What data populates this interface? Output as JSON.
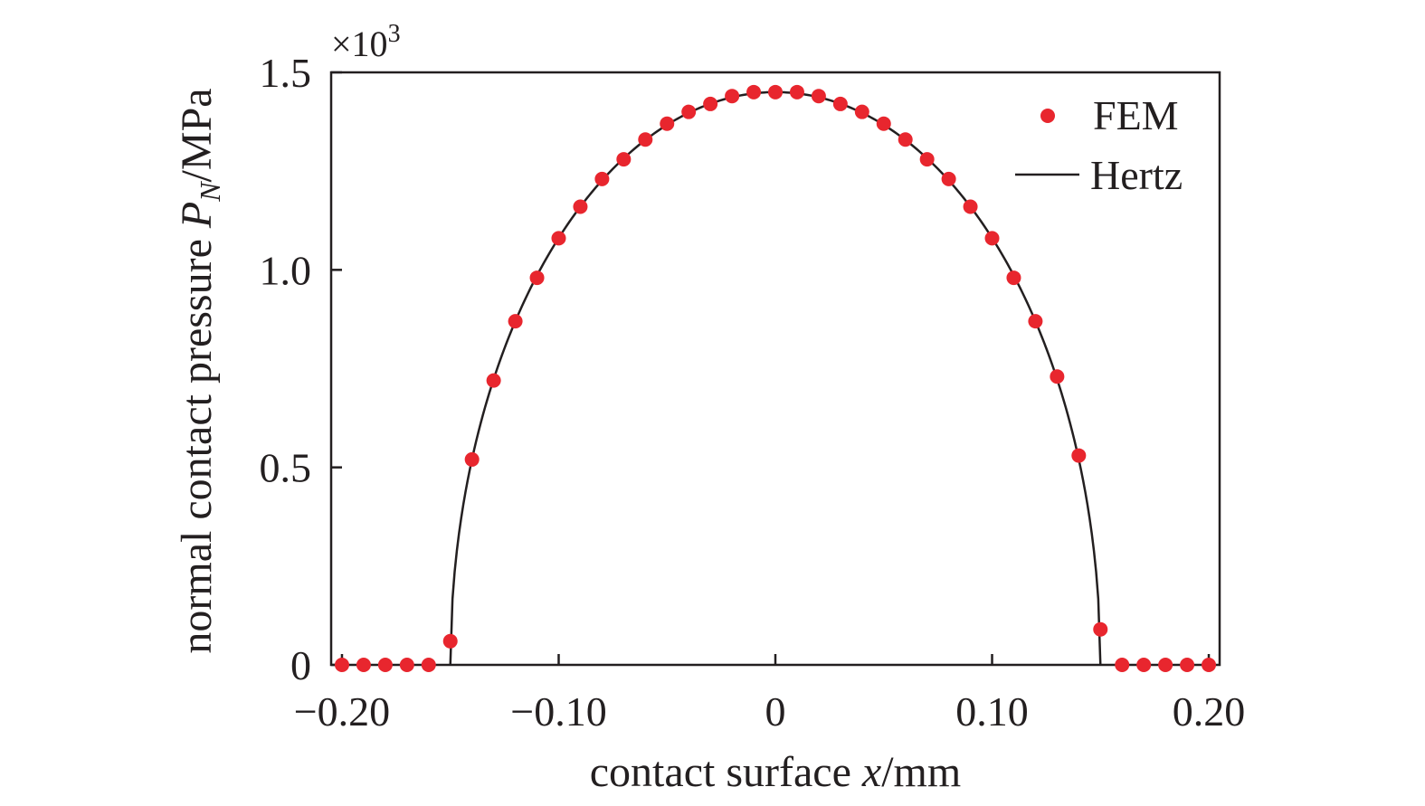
{
  "chart_data": {
    "type": "scatter",
    "title": "",
    "xlabel": {
      "pre": "contact surface ",
      "var": "x",
      "post": "/mm"
    },
    "ylabel": {
      "pre": "normal contact pressure ",
      "var": "P",
      "sub": "N",
      "post": "/MPa"
    },
    "y_multiplier": {
      "base": "×10",
      "exp": "3"
    },
    "xlim": [
      -0.205,
      0.205
    ],
    "ylim": [
      0,
      1.5
    ],
    "xticks": [
      {
        "v": -0.2,
        "label": "−0.20"
      },
      {
        "v": -0.1,
        "label": "−0.10"
      },
      {
        "v": 0,
        "label": "0"
      },
      {
        "v": 0.1,
        "label": "0.10"
      },
      {
        "v": 0.2,
        "label": "0.20"
      }
    ],
    "yticks": [
      {
        "v": 0,
        "label": "0"
      },
      {
        "v": 0.5,
        "label": "0.5"
      },
      {
        "v": 1.0,
        "label": "1.0"
      },
      {
        "v": 1.5,
        "label": "1.5"
      }
    ],
    "legend_position": "top-right",
    "grid": false,
    "series": [
      {
        "name": "FEM",
        "kind": "markers",
        "color": "#e8262e",
        "x": [
          -0.2,
          -0.19,
          -0.18,
          -0.17,
          -0.16,
          -0.15,
          -0.14,
          -0.13,
          -0.12,
          -0.11,
          -0.1,
          -0.09,
          -0.08,
          -0.07,
          -0.06,
          -0.05,
          -0.04,
          -0.03,
          -0.02,
          -0.01,
          0.0,
          0.01,
          0.02,
          0.03,
          0.04,
          0.05,
          0.06,
          0.07,
          0.08,
          0.09,
          0.1,
          0.11,
          0.12,
          0.13,
          0.14,
          0.15,
          0.16,
          0.17,
          0.18,
          0.19,
          0.2
        ],
        "y": [
          0,
          0,
          0,
          0,
          0,
          0.06,
          0.52,
          0.72,
          0.87,
          0.98,
          1.08,
          1.16,
          1.23,
          1.28,
          1.33,
          1.37,
          1.4,
          1.42,
          1.44,
          1.45,
          1.45,
          1.45,
          1.44,
          1.42,
          1.4,
          1.37,
          1.33,
          1.28,
          1.23,
          1.16,
          1.08,
          0.98,
          0.87,
          0.73,
          0.53,
          0.09,
          0,
          0,
          0,
          0,
          0
        ]
      },
      {
        "name": "Hertz",
        "kind": "line",
        "color": "#231f20",
        "formula": "p = 1.45 * sqrt(1 - (x/0.15)^2) for |x| <= 0.15",
        "p0": 1.45,
        "a": 0.15
      }
    ]
  }
}
